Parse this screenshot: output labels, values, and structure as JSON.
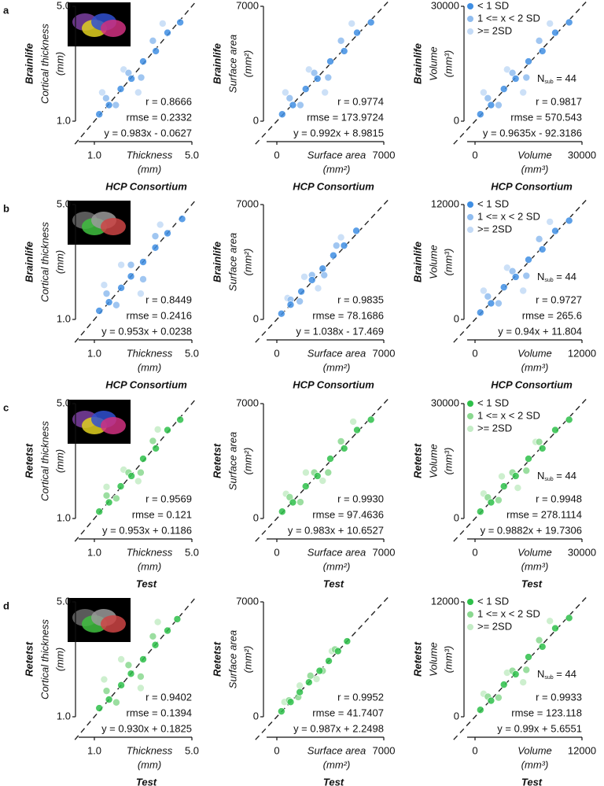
{
  "panel_labels": [
    "a",
    "b",
    "c",
    "d"
  ],
  "chart_data": [
    {
      "type": "scatter",
      "ylabel_group": "Brainlife",
      "ylabel": "Cortical thickness",
      "ylabel_unit": "(mm)",
      "xlabel": "Thickness",
      "xlabel_unit": "(mm)",
      "xlabel_group": "HCP Consortium",
      "xlim": [
        1,
        5
      ],
      "ylim": [
        1,
        5
      ],
      "xticks": [
        {
          "value": 1,
          "label": "1.0"
        },
        {
          "value": 5,
          "label": "5.0"
        }
      ],
      "yticks": [
        {
          "value": 1,
          "label": "1.0"
        },
        {
          "value": 5,
          "label": "5.0"
        }
      ],
      "stats": [
        "r = 0.8666",
        "rmse = 0.2332",
        "y = 0.983x - 0.0627"
      ],
      "series": [
        {
          "color": "#c3daf6",
          "x": [
            1.32,
            2.2,
            2.8,
            3.8
          ],
          "y": [
            2.0,
            2.8,
            2.0,
            4.4
          ]
        },
        {
          "color": "#8fbcef",
          "x": [
            1.48,
            1.88,
            2.4,
            2.92,
            3.4
          ],
          "y": [
            1.8,
            1.56,
            2.68,
            2.52,
            3.8
          ]
        },
        {
          "color": "#3f8ee3",
          "x": [
            1.2,
            1.6,
            2.08,
            2.52,
            3.0,
            3.52,
            4.0,
            4.52
          ],
          "y": [
            1.24,
            1.56,
            2.12,
            2.48,
            3.08,
            3.44,
            4.08,
            4.44
          ]
        }
      ]
    },
    {
      "type": "scatter",
      "ylabel_group": "Brainlife",
      "ylabel": "Surface area",
      "ylabel_unit": "(mm²)",
      "xlabel": "Surface area",
      "xlabel_unit": "(mm²)",
      "xlabel_group": "HCP Consortium",
      "xlim": [
        0,
        7000
      ],
      "ylim": [
        0,
        7000
      ],
      "xticks": [
        0,
        7000
      ],
      "yticks": [
        0,
        7000
      ],
      "stats": [
        "r = 0.9774",
        "rmse = 173.9724",
        "y = 0.992x + 8.9815"
      ],
      "series": [
        {
          "color": "#c3daf6",
          "x": [
            560,
            2100,
            3150,
            4900
          ],
          "y": [
            1750,
            3150,
            1750,
            5950
          ]
        },
        {
          "color": "#8fbcef",
          "x": [
            840,
            1540,
            2450,
            3360,
            4200
          ],
          "y": [
            1400,
            980,
            2940,
            2660,
            4900
          ]
        },
        {
          "color": "#3f8ee3",
          "x": [
            350,
            1050,
            1890,
            2660,
            3500,
            4410,
            5250,
            6160
          ],
          "y": [
            420,
            980,
            1960,
            2590,
            3640,
            4270,
            5390,
            6020
          ]
        }
      ]
    },
    {
      "type": "scatter",
      "ylabel_group": "Brainlife",
      "ylabel": "Volume",
      "ylabel_unit": "(mm³)",
      "xlabel": "Volume",
      "xlabel_unit": "(mm³)",
      "xlabel_group": "HCP Consortium",
      "xlim": [
        0,
        30000
      ],
      "ylim": [
        0,
        30000
      ],
      "xticks": [
        0,
        30000
      ],
      "yticks": [
        0,
        30000
      ],
      "stats": [
        "r = 0.9817",
        "rmse = 570.543",
        "y = 0.9635x - 92.3186"
      ],
      "annotation": {
        "main": "N",
        "sub": "sub",
        "rest": " = 44"
      },
      "series": [
        {
          "name": ">= 2SD",
          "color": "#c3daf6",
          "x": [
            2400,
            9000,
            13500,
            21000
          ],
          "y": [
            7500,
            13500,
            7500,
            25500
          ]
        },
        {
          "name": "1 <= x < 2 SD",
          "color": "#8fbcef",
          "x": [
            3600,
            6600,
            10500,
            14400,
            18000
          ],
          "y": [
            6000,
            4200,
            12600,
            11400,
            21000
          ]
        },
        {
          "name": "< 1 SD",
          "color": "#3f8ee3",
          "x": [
            1500,
            4500,
            8100,
            11400,
            15000,
            18900,
            22500,
            26400
          ],
          "y": [
            1800,
            4200,
            8400,
            11100,
            15600,
            18300,
            23100,
            25800
          ]
        }
      ]
    },
    {
      "type": "scatter",
      "ylabel_group": "Brainlife",
      "ylabel": "Cortical thickness",
      "ylabel_unit": "(mm)",
      "xlabel": "Thickness",
      "xlabel_unit": "(mm)",
      "xlabel_group": "HCP Consortium",
      "xlim": [
        1,
        5
      ],
      "ylim": [
        1,
        5
      ],
      "xticks": [
        {
          "value": 1,
          "label": "1.0"
        },
        {
          "value": 5,
          "label": "5.0"
        }
      ],
      "yticks": [
        {
          "value": 1,
          "label": "1.0"
        },
        {
          "value": 5,
          "label": "5.0"
        }
      ],
      "stats": [
        "r = 0.8449",
        "rmse = 0.2416",
        "y = 0.953x + 0.0238"
      ],
      "series": [
        {
          "color": "#c3daf6",
          "x": [
            1.4,
            2.1,
            2.9,
            3.7
          ],
          "y": [
            2.2,
            2.9,
            1.9,
            4.3
          ]
        },
        {
          "color": "#8fbcef",
          "x": [
            1.5,
            1.9,
            2.5,
            3.0,
            3.5
          ],
          "y": [
            1.9,
            1.5,
            2.9,
            2.4,
            3.9
          ]
        },
        {
          "color": "#3f8ee3",
          "x": [
            1.2,
            1.6,
            2.1,
            2.5,
            3.0,
            3.5,
            4.0,
            4.6
          ],
          "y": [
            1.3,
            1.6,
            2.1,
            2.5,
            3.0,
            3.5,
            4.0,
            4.5
          ]
        }
      ]
    },
    {
      "type": "scatter",
      "ylabel_group": "Brainlife",
      "ylabel": "Surface area",
      "ylabel_unit": "(mm²)",
      "xlabel": "Surface area",
      "xlabel_unit": "(mm²)",
      "xlabel_group": "HCP Consortium",
      "xlim": [
        0,
        7000
      ],
      "ylim": [
        0,
        7000
      ],
      "xticks": [
        0,
        7000
      ],
      "yticks": [
        0,
        7000
      ],
      "stats": [
        "r = 0.9835",
        "rmse = 78.1686",
        "y = 1.038x - 17.469"
      ],
      "series": [
        {
          "color": "#c3daf6",
          "x": [
            700,
            1800,
            2700,
            4200
          ],
          "y": [
            1300,
            2600,
            1900,
            5000
          ]
        },
        {
          "color": "#8fbcef",
          "x": [
            900,
            1500,
            2300,
            3100,
            3900
          ],
          "y": [
            1200,
            1100,
            2700,
            2700,
            4500
          ]
        },
        {
          "color": "#3f8ee3",
          "x": [
            300,
            900,
            1600,
            2300,
            3000,
            3700,
            4400,
            5200
          ],
          "y": [
            350,
            900,
            1700,
            2400,
            3100,
            3900,
            4500,
            5400
          ]
        }
      ]
    },
    {
      "type": "scatter",
      "ylabel_group": "Brainlife",
      "ylabel": "Volume",
      "ylabel_unit": "(mm³)",
      "xlabel": "Volume",
      "xlabel_unit": "(mm³)",
      "xlabel_group": "HCP Consortium",
      "xlim": [
        0,
        12000
      ],
      "ylim": [
        0,
        12000
      ],
      "xticks": [
        0,
        12000
      ],
      "yticks": [
        0,
        12000
      ],
      "stats": [
        "r = 0.9727",
        "rmse = 265.6",
        "y = 0.94x + 11.804"
      ],
      "annotation": {
        "main": "N",
        "sub": "sub",
        "rest": " = 44"
      },
      "series": [
        {
          "name": ">= 2SD",
          "color": "#c3daf6",
          "x": [
            960,
            3600,
            5400,
            8400
          ],
          "y": [
            3000,
            5400,
            3000,
            10200
          ]
        },
        {
          "name": "1 <= x < 2 SD",
          "color": "#8fbcef",
          "x": [
            1440,
            2640,
            4200,
            5760,
            7200
          ],
          "y": [
            2400,
            1680,
            5040,
            4560,
            8400
          ]
        },
        {
          "name": "< 1 SD",
          "color": "#3f8ee3",
          "x": [
            600,
            1800,
            3240,
            4560,
            6000,
            7560,
            9000,
            10560
          ],
          "y": [
            720,
            1680,
            3360,
            4440,
            6240,
            7320,
            9240,
            10320
          ]
        }
      ]
    },
    {
      "type": "scatter",
      "ylabel_group": "Retetst",
      "ylabel": "Cortical thickness",
      "ylabel_unit": "(mm)",
      "xlabel": "Thickness",
      "xlabel_unit": "(mm)",
      "xlabel_group": "Test",
      "xlim": [
        1,
        5
      ],
      "ylim": [
        1,
        5
      ],
      "xticks": [
        {
          "value": 1,
          "label": "1.0"
        },
        {
          "value": 5,
          "label": "5.0"
        }
      ],
      "yticks": [
        {
          "value": 1,
          "label": "1.0"
        },
        {
          "value": 5,
          "label": "5.0"
        }
      ],
      "stats": [
        "r = 0.9569",
        "rmse = 0.121",
        "y = 0.953x + 0.1186"
      ],
      "series": [
        {
          "color": "#c4ecc6",
          "x": [
            1.5,
            2.2,
            2.8,
            3.6
          ],
          "y": [
            2.1,
            2.7,
            2.3,
            4.1
          ]
        },
        {
          "color": "#8ad88f",
          "x": [
            1.5,
            1.9,
            2.4,
            2.9,
            3.4
          ],
          "y": [
            1.8,
            1.7,
            2.6,
            2.6,
            3.7
          ]
        },
        {
          "color": "#2ec04a",
          "x": [
            1.2,
            1.6,
            2.08,
            2.52,
            3.0,
            3.52,
            4.0,
            4.52
          ],
          "y": [
            1.24,
            1.56,
            2.12,
            2.48,
            3.08,
            3.44,
            4.08,
            4.44
          ]
        }
      ]
    },
    {
      "type": "scatter",
      "ylabel_group": "Retetst",
      "ylabel": "Surface area",
      "ylabel_unit": "(mm²)",
      "xlabel": "Surface area",
      "xlabel_unit": "(mm²)",
      "xlabel_group": "Test",
      "xlim": [
        0,
        7000
      ],
      "ylim": [
        0,
        7000
      ],
      "xticks": [
        0,
        7000
      ],
      "yticks": [
        0,
        7000
      ],
      "stats": [
        "r = 0.9930",
        "rmse = 97.4636",
        "y = 0.983x + 10.6527"
      ],
      "series": [
        {
          "color": "#c4ecc6",
          "x": [
            600,
            1900,
            3000,
            5000
          ],
          "y": [
            1500,
            2800,
            2300,
            5900
          ]
        },
        {
          "color": "#8ad88f",
          "x": [
            840,
            1540,
            2450,
            3360,
            4200
          ],
          "y": [
            1300,
            1000,
            2800,
            2800,
            4700
          ]
        },
        {
          "color": "#2ec04a",
          "x": [
            350,
            1050,
            1890,
            2660,
            3500,
            4410,
            5250,
            6160
          ],
          "y": [
            420,
            980,
            1960,
            2590,
            3640,
            4270,
            5390,
            6020
          ]
        }
      ]
    },
    {
      "type": "scatter",
      "ylabel_group": "Retetst",
      "ylabel": "Volume",
      "ylabel_unit": "(mm³)",
      "xlabel": "Volume",
      "xlabel_unit": "(mm³)",
      "xlabel_group": "Test",
      "xlim": [
        0,
        30000
      ],
      "ylim": [
        0,
        30000
      ],
      "xticks": [
        0,
        30000
      ],
      "yticks": [
        0,
        30000
      ],
      "stats": [
        "r = 0.9948",
        "rmse = 278.1114",
        "y = 0.9882x + 19.7306"
      ],
      "annotation": {
        "main": "N",
        "sub": "sub",
        "rest": " = 44"
      },
      "series": [
        {
          "name": ">= 2SD",
          "color": "#c4ecc6",
          "x": [
            2400,
            7500,
            12000,
            17000
          ],
          "y": [
            6500,
            11000,
            8000,
            20000
          ]
        },
        {
          "name": "1 <= x < 2 SD",
          "color": "#8ad88f",
          "x": [
            3600,
            6600,
            10500,
            14400,
            18000
          ],
          "y": [
            5500,
            4800,
            12000,
            12500,
            20000
          ]
        },
        {
          "name": "< 1 SD",
          "color": "#2ec04a",
          "x": [
            1500,
            4500,
            8100,
            11400,
            15000,
            18900,
            22500,
            26400
          ],
          "y": [
            1800,
            4200,
            8400,
            11100,
            15600,
            18300,
            23100,
            25800
          ]
        }
      ]
    },
    {
      "type": "scatter",
      "ylabel_group": "Retetst",
      "ylabel": "Cortical thickness",
      "ylabel_unit": "(mm)",
      "xlabel": "Thickness",
      "xlabel_unit": "(mm)",
      "xlabel_group": "Test",
      "xlim": [
        1,
        5
      ],
      "ylim": [
        1,
        5
      ],
      "xticks": [
        {
          "value": 1,
          "label": "1.0"
        },
        {
          "value": 5,
          "label": "5.0"
        }
      ],
      "yticks": [
        {
          "value": 1,
          "label": "1.0"
        },
        {
          "value": 5,
          "label": "5.0"
        }
      ],
      "stats": [
        "r = 0.9402",
        "rmse = 0.1394",
        "y = 0.930x + 0.1825"
      ],
      "series": [
        {
          "color": "#c4ecc6",
          "x": [
            1.4,
            2.1,
            2.9,
            3.6
          ],
          "y": [
            2.3,
            3.0,
            2.0,
            4.3
          ]
        },
        {
          "color": "#8ad88f",
          "x": [
            1.5,
            1.9,
            2.4,
            2.9,
            3.4
          ],
          "y": [
            1.9,
            1.5,
            2.8,
            2.4,
            3.8
          ]
        },
        {
          "color": "#2ec04a",
          "x": [
            1.2,
            1.6,
            2.1,
            2.5,
            3.0,
            3.5,
            4.0,
            4.4
          ],
          "y": [
            1.3,
            1.6,
            2.1,
            2.5,
            3.0,
            3.5,
            4.0,
            4.4
          ]
        }
      ]
    },
    {
      "type": "scatter",
      "ylabel_group": "Retetst",
      "ylabel": "Surface area",
      "ylabel_unit": "(mm²)",
      "xlabel": "Surface area",
      "xlabel_unit": "(mm²)",
      "xlabel_group": "Test",
      "xlim": [
        0,
        7000
      ],
      "ylim": [
        0,
        7000
      ],
      "xticks": [
        0,
        7000
      ],
      "yticks": [
        0,
        7000
      ],
      "stats": [
        "r = 0.9952",
        "rmse = 41.7407",
        "y = 0.987x + 2.2498"
      ],
      "series": [
        {
          "color": "#c4ecc6",
          "x": [
            500,
            1500,
            2600,
            3600
          ],
          "y": [
            900,
            1900,
            2300,
            4000
          ]
        },
        {
          "color": "#8ad88f",
          "x": [
            800,
            1400,
            2200,
            3000,
            3800
          ],
          "y": [
            1000,
            1200,
            2500,
            2800,
            4100
          ]
        },
        {
          "color": "#2ec04a",
          "x": [
            300,
            900,
            1500,
            2100,
            2800,
            3400,
            4000,
            4600
          ],
          "y": [
            330,
            900,
            1500,
            2100,
            2800,
            3400,
            4000,
            4600
          ]
        }
      ]
    },
    {
      "type": "scatter",
      "ylabel_group": "Retetst",
      "ylabel": "Volume",
      "ylabel_unit": "(mm³)",
      "xlabel": "Volume",
      "xlabel_unit": "(mm³)",
      "xlabel_group": "Test",
      "xlim": [
        0,
        12000
      ],
      "ylim": [
        0,
        12000
      ],
      "xticks": [
        0,
        12000
      ],
      "yticks": [
        0,
        12000
      ],
      "stats": [
        "r = 0.9933",
        "rmse = 123.118",
        "y = 0.99x + 5.6551"
      ],
      "annotation": {
        "main": "N",
        "sub": "sub",
        "rest": " = 44"
      },
      "series": [
        {
          "name": ">= 2SD",
          "color": "#c4ecc6",
          "x": [
            960,
            3600,
            5400,
            8400
          ],
          "y": [
            2400,
            4600,
            3600,
            10000
          ]
        },
        {
          "name": "1 <= x < 2 SD",
          "color": "#8ad88f",
          "x": [
            1440,
            2640,
            4200,
            5760,
            7200
          ],
          "y": [
            2100,
            2000,
            4800,
            4900,
            8000
          ]
        },
        {
          "name": "< 1 SD",
          "color": "#2ec04a",
          "x": [
            600,
            1800,
            3240,
            4560,
            6000,
            7560,
            9000,
            10560
          ],
          "y": [
            720,
            1680,
            3360,
            4440,
            6240,
            7320,
            9240,
            10320
          ]
        }
      ]
    }
  ]
}
